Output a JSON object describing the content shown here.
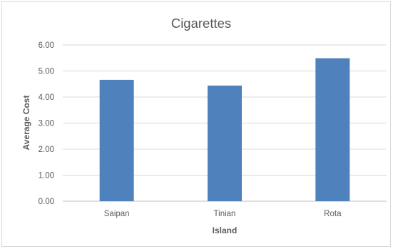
{
  "chart_data": {
    "type": "bar",
    "title": "Cigarettes",
    "xlabel": "Island",
    "ylabel": "Average Cost",
    "categories": [
      "Saipan",
      "Tinian",
      "Rota"
    ],
    "values": [
      4.66,
      4.44,
      5.49
    ],
    "ylim": [
      0,
      6
    ],
    "yticks": [
      "0.00",
      "1.00",
      "2.00",
      "3.00",
      "4.00",
      "5.00",
      "6.00"
    ],
    "grid": true,
    "legend": "none",
    "bar_color": "#4f81bd"
  }
}
